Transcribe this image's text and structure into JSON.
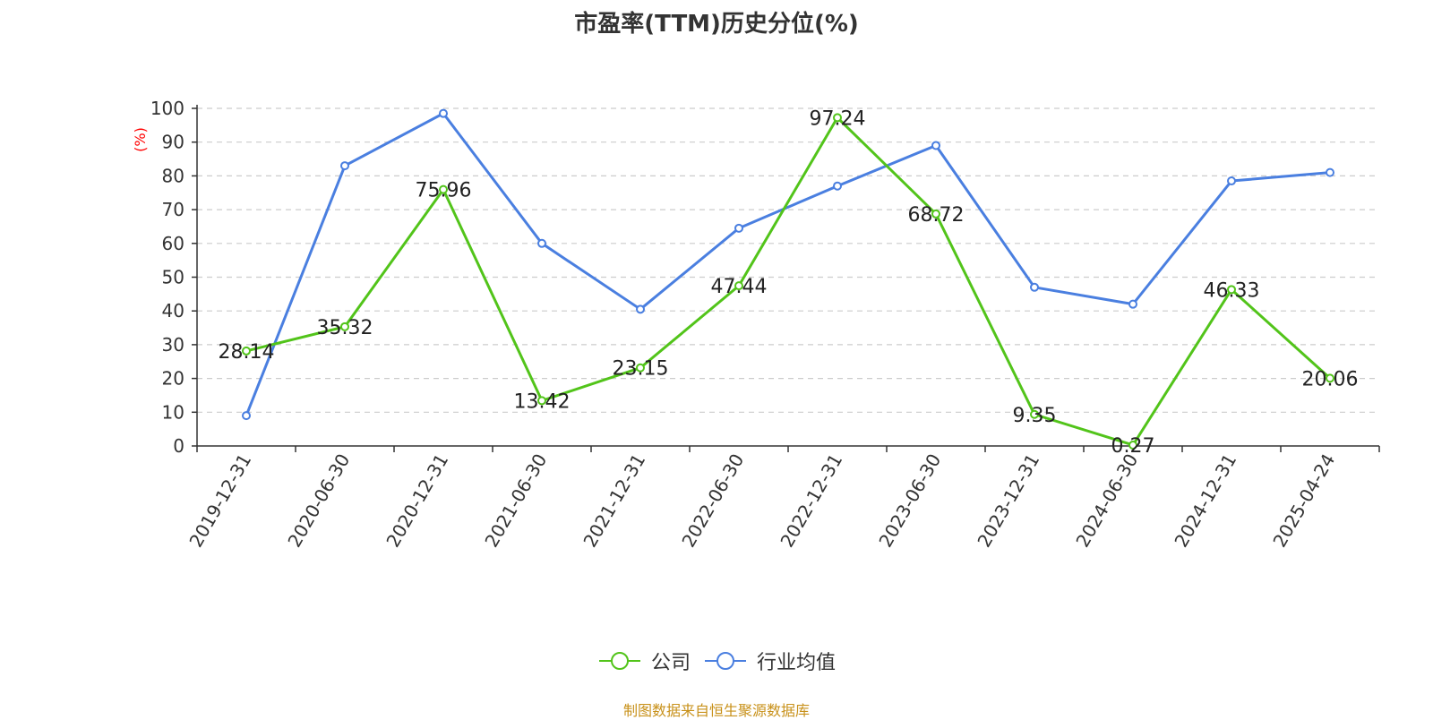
{
  "colors": {
    "company": "#52c41a",
    "industry": "#4a7fe0",
    "ylabel": "#ff0000",
    "source": "#c8911a"
  },
  "chart_data": {
    "type": "line",
    "title": "市盈率(TTM)历史分位(%)",
    "ylabel": "(%)",
    "xlabel": "",
    "ylim": [
      0,
      100
    ],
    "yticks": [
      0,
      10,
      20,
      30,
      40,
      50,
      60,
      70,
      80,
      90,
      100
    ],
    "categories": [
      "2019-12-31",
      "2020-06-30",
      "2020-12-31",
      "2021-06-30",
      "2021-12-31",
      "2022-06-30",
      "2022-12-31",
      "2023-06-30",
      "2023-12-31",
      "2024-06-30",
      "2024-12-31",
      "2025-04-24"
    ],
    "series": [
      {
        "name": "公司",
        "values": [
          28.14,
          35.32,
          75.96,
          13.42,
          23.15,
          47.44,
          97.24,
          68.72,
          9.35,
          0.27,
          46.33,
          20.06
        ],
        "labels": [
          "28.14",
          "35.32",
          "75.96",
          "13.42",
          "23.15",
          "47.44",
          "97.24",
          "68.72",
          "9.35",
          "0.27",
          "46.33",
          "20.06"
        ]
      },
      {
        "name": "行业均值",
        "values": [
          9,
          83,
          98.5,
          60,
          40.5,
          64.5,
          77,
          89,
          47,
          42,
          78.5,
          81
        ]
      }
    ],
    "grid": true,
    "legend_position": "bottom"
  },
  "source_text": "制图数据来自恒生聚源数据库"
}
